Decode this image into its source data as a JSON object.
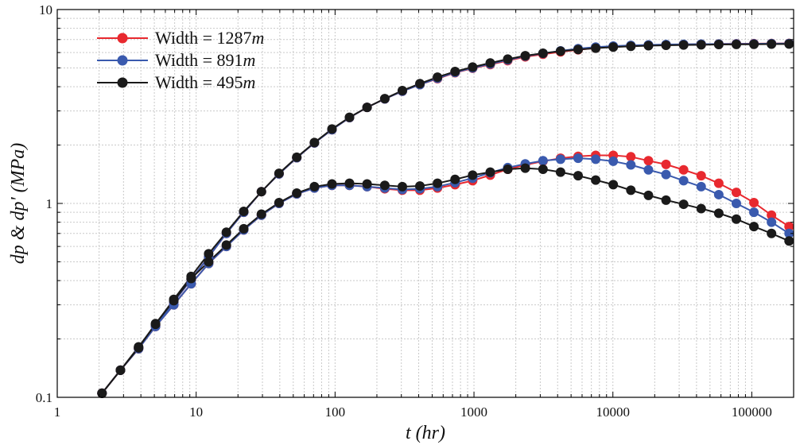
{
  "chart_data": {
    "type": "line",
    "x_scale": "log",
    "y_scale": "log",
    "xlabel": "t (hr)",
    "ylabel": "dp & dp' (MPa)",
    "xlim": [
      1,
      200000
    ],
    "ylim": [
      0.1,
      10
    ],
    "x_ticks": [
      1,
      10,
      100,
      1000,
      10000,
      100000
    ],
    "x_tick_labels": [
      "1",
      "10",
      "100",
      "1000",
      "10000",
      "100000"
    ],
    "y_ticks": [
      0.1,
      1,
      10
    ],
    "y_tick_labels": [
      "0.1",
      "1",
      "10"
    ],
    "grid": true,
    "legend_position": "top-left",
    "x": [
      2.1,
      2.85,
      3.85,
      5.1,
      6.9,
      9.2,
      12.3,
      16.5,
      22,
      29.5,
      39.5,
      53,
      71,
      95,
      127,
      170,
      228,
      305,
      408,
      546,
      731,
      978,
      1310,
      1750,
      2340,
      3140,
      4200,
      5620,
      7520,
      10060,
      13470,
      18030,
      24130,
      32290,
      43210,
      57830,
      77390,
      103570,
      138600,
      185500
    ],
    "series": [
      {
        "name": "Width = 1287m",
        "label_text": "Width = 1287",
        "unit": "m",
        "color": "#e8292f",
        "pressure": [
          0.105,
          0.138,
          0.18,
          0.235,
          0.31,
          0.405,
          0.53,
          0.7,
          0.9,
          1.15,
          1.42,
          1.72,
          2.05,
          2.4,
          2.77,
          3.13,
          3.46,
          3.79,
          4.1,
          4.4,
          4.72,
          4.98,
          5.2,
          5.45,
          5.7,
          5.88,
          6.05,
          6.2,
          6.33,
          6.43,
          6.5,
          6.55,
          6.58,
          6.6,
          6.62,
          6.64,
          6.66,
          6.67,
          6.68,
          6.69
        ],
        "derivative": [
          0.105,
          0.138,
          0.178,
          0.232,
          0.3,
          0.385,
          0.49,
          0.6,
          0.73,
          0.87,
          1.0,
          1.12,
          1.2,
          1.24,
          1.24,
          1.22,
          1.19,
          1.17,
          1.17,
          1.2,
          1.25,
          1.31,
          1.4,
          1.5,
          1.58,
          1.65,
          1.71,
          1.75,
          1.77,
          1.77,
          1.74,
          1.66,
          1.59,
          1.49,
          1.39,
          1.27,
          1.14,
          1.01,
          0.87,
          0.76
        ]
      },
      {
        "name": "Width = 891m",
        "label_text": "Width = 891",
        "unit": "m",
        "color": "#3a5aae",
        "pressure": [
          0.105,
          0.138,
          0.18,
          0.235,
          0.31,
          0.405,
          0.53,
          0.7,
          0.9,
          1.15,
          1.42,
          1.72,
          2.05,
          2.4,
          2.77,
          3.13,
          3.46,
          3.79,
          4.1,
          4.42,
          4.74,
          5.0,
          5.24,
          5.5,
          5.75,
          5.94,
          6.12,
          6.28,
          6.4,
          6.48,
          6.53,
          6.57,
          6.6,
          6.62,
          6.63,
          6.64,
          6.65,
          6.66,
          6.67,
          6.68
        ],
        "derivative": [
          0.105,
          0.138,
          0.178,
          0.232,
          0.3,
          0.385,
          0.49,
          0.6,
          0.73,
          0.87,
          1.0,
          1.12,
          1.2,
          1.24,
          1.24,
          1.22,
          1.2,
          1.18,
          1.19,
          1.22,
          1.28,
          1.35,
          1.44,
          1.53,
          1.6,
          1.66,
          1.69,
          1.71,
          1.69,
          1.65,
          1.58,
          1.49,
          1.41,
          1.31,
          1.22,
          1.11,
          1.0,
          0.9,
          0.8,
          0.7
        ]
      },
      {
        "name": "Width = 495m",
        "label_text": "Width = 495",
        "unit": "m",
        "color": "#1a1a1a",
        "pressure": [
          0.105,
          0.138,
          0.182,
          0.238,
          0.32,
          0.42,
          0.55,
          0.71,
          0.91,
          1.15,
          1.43,
          1.73,
          2.06,
          2.42,
          2.78,
          3.13,
          3.47,
          3.82,
          4.15,
          4.48,
          4.79,
          5.05,
          5.3,
          5.55,
          5.78,
          5.95,
          6.1,
          6.22,
          6.32,
          6.4,
          6.46,
          6.51,
          6.54,
          6.56,
          6.58,
          6.6,
          6.61,
          6.62,
          6.63,
          6.64
        ],
        "derivative": [
          0.105,
          0.138,
          0.18,
          0.24,
          0.315,
          0.41,
          0.5,
          0.61,
          0.74,
          0.88,
          1.01,
          1.13,
          1.22,
          1.26,
          1.27,
          1.26,
          1.24,
          1.22,
          1.23,
          1.27,
          1.33,
          1.4,
          1.45,
          1.5,
          1.52,
          1.5,
          1.45,
          1.39,
          1.32,
          1.25,
          1.17,
          1.1,
          1.04,
          0.99,
          0.94,
          0.89,
          0.83,
          0.76,
          0.7,
          0.64
        ]
      }
    ]
  }
}
